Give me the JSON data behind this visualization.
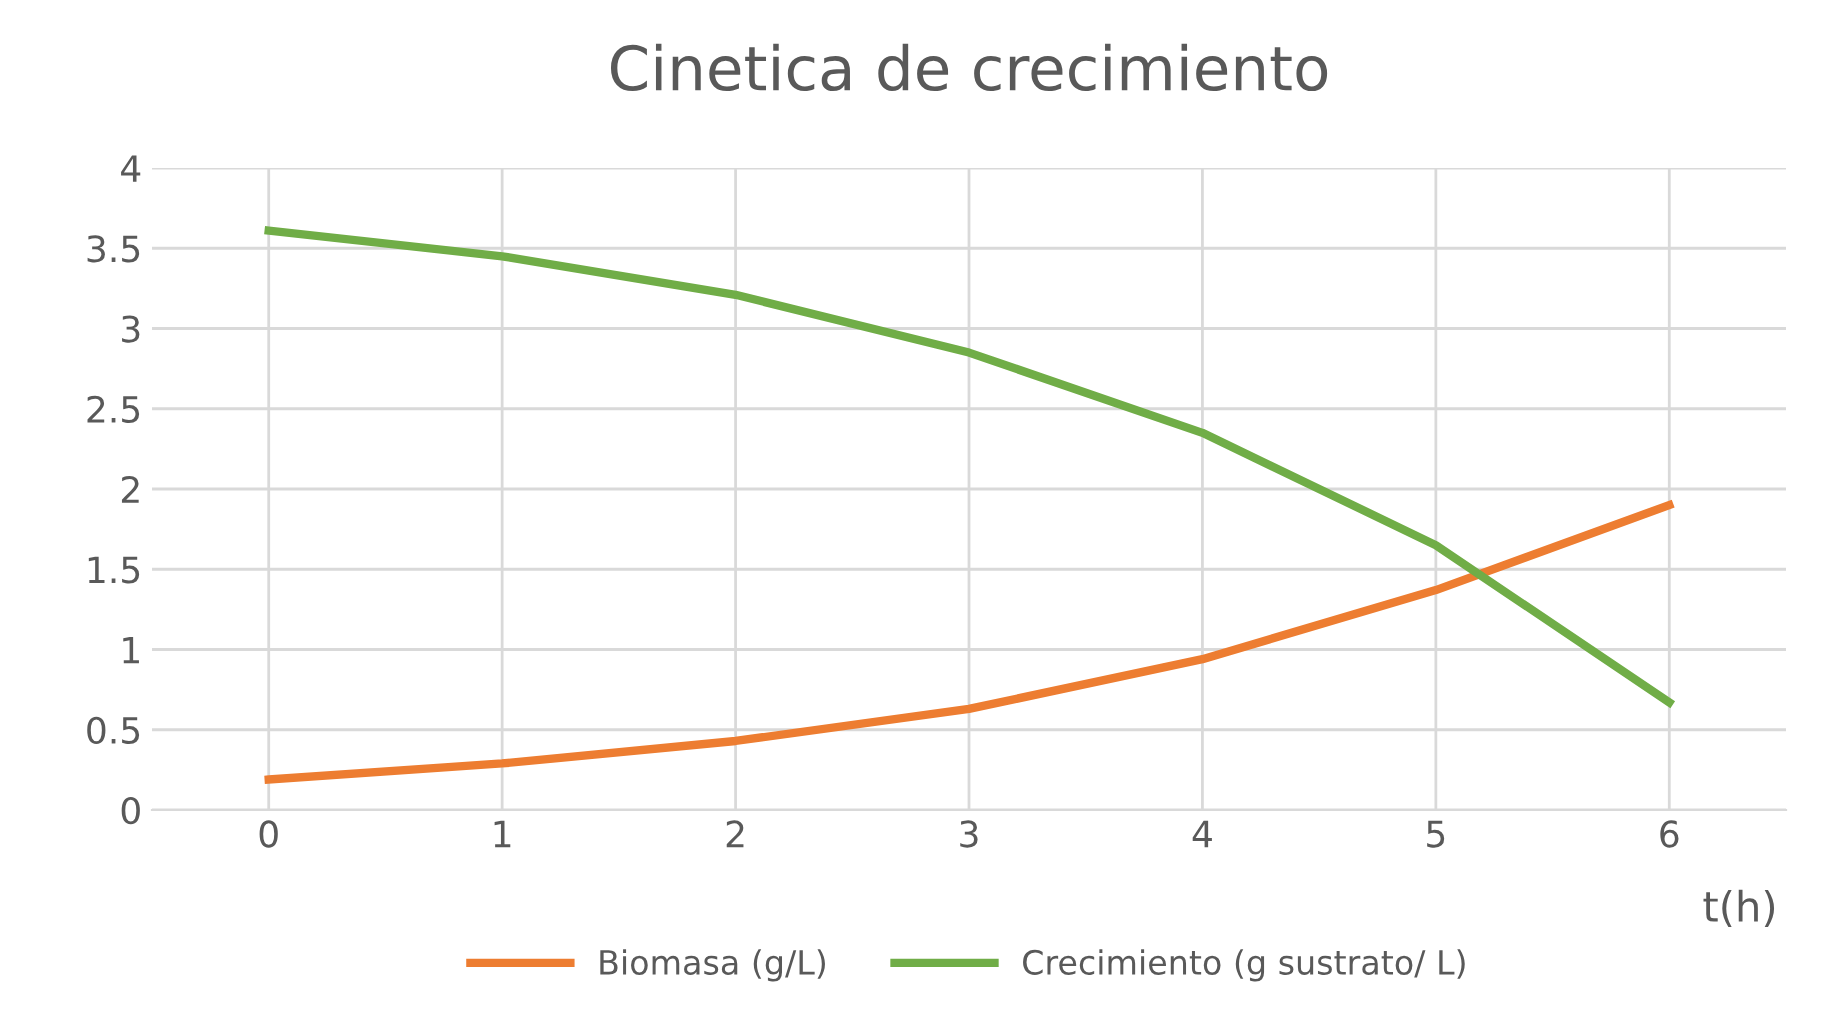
{
  "chart_data": {
    "type": "line",
    "title": "Cinetica de crecimiento",
    "xlabel": "t(h)",
    "categories": [
      "0",
      "1",
      "2",
      "3",
      "4",
      "5",
      "6"
    ],
    "series": [
      {
        "name": "Biomasa (g/L)",
        "color": "#ed7d31",
        "values": [
          0.19,
          0.29,
          0.43,
          0.63,
          0.94,
          1.37,
          1.9
        ]
      },
      {
        "name": "Crecimiento (g sustrato/ L)",
        "color": "#70ad47",
        "values": [
          3.61,
          3.45,
          3.21,
          2.85,
          2.35,
          1.65,
          0.67
        ]
      }
    ],
    "ylim": [
      0,
      4
    ],
    "yticks": [
      0,
      0.5,
      1,
      1.5,
      2,
      2.5,
      3,
      3.5,
      4
    ],
    "grid": true,
    "legend": "bottom",
    "marker": "none",
    "line_style": "solid"
  }
}
